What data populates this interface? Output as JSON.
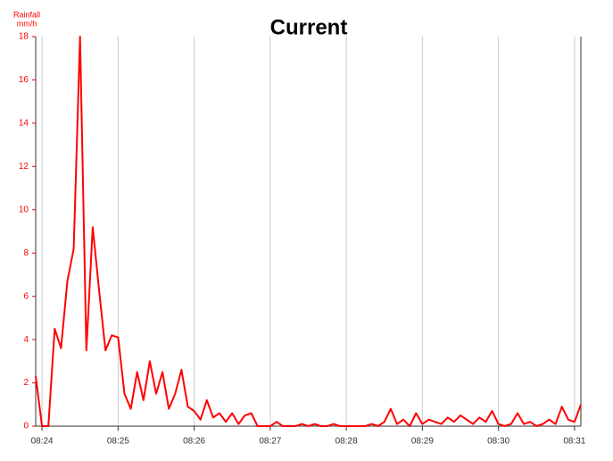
{
  "chart_data": {
    "type": "line",
    "title": "Current",
    "y_label": [
      "Rainfall",
      "mm/h"
    ],
    "categories": [
      null,
      "08:24",
      null,
      null,
      null,
      null,
      null,
      null,
      null,
      null,
      null,
      null,
      null,
      "08:25",
      null,
      null,
      null,
      null,
      null,
      null,
      null,
      null,
      null,
      null,
      null,
      "08:26",
      null,
      null,
      null,
      null,
      null,
      null,
      null,
      null,
      null,
      null,
      null,
      "08:27",
      null,
      null,
      null,
      null,
      null,
      null,
      null,
      null,
      null,
      null,
      null,
      "08:28",
      null,
      null,
      null,
      null,
      null,
      null,
      null,
      null,
      null,
      null,
      null,
      "08:29",
      null,
      null,
      null,
      null,
      null,
      null,
      null,
      null,
      null,
      null,
      null,
      "08:30",
      null,
      null,
      null,
      null,
      null,
      null,
      null,
      null,
      null,
      null,
      null,
      "08:31",
      null
    ],
    "values": [
      2.3,
      0,
      0,
      4.5,
      3.6,
      6.7,
      8.2,
      18,
      3.5,
      9.2,
      6.3,
      3.5,
      4.2,
      4.1,
      1.5,
      0.8,
      2.5,
      1.2,
      3.0,
      1.5,
      2.5,
      0.8,
      1.5,
      2.6,
      0.9,
      0.7,
      0.3,
      1.2,
      0.4,
      0.6,
      0.2,
      0.6,
      0.1,
      0.5,
      0.6,
      0,
      0,
      0,
      0.2,
      0,
      0,
      0,
      0.1,
      0,
      0.1,
      0,
      0,
      0.1,
      0,
      0,
      0,
      0,
      0,
      0.1,
      0,
      0.2,
      0.8,
      0.1,
      0.3,
      0,
      0.6,
      0.1,
      0.3,
      0.2,
      0.1,
      0.4,
      0.2,
      0.5,
      0.3,
      0.1,
      0.4,
      0.2,
      0.7,
      0.1,
      0,
      0.1,
      0.6,
      0.1,
      0.2,
      0,
      0.1,
      0.3,
      0.1,
      0.9,
      0.3,
      0.2,
      1.0
    ],
    "color": "#ff0000",
    "axis_color": "#ff0000",
    "ylim": [
      0,
      18
    ],
    "yticks": [
      0,
      2,
      4,
      6,
      8,
      10,
      12,
      14,
      16,
      18
    ],
    "grid": true
  }
}
